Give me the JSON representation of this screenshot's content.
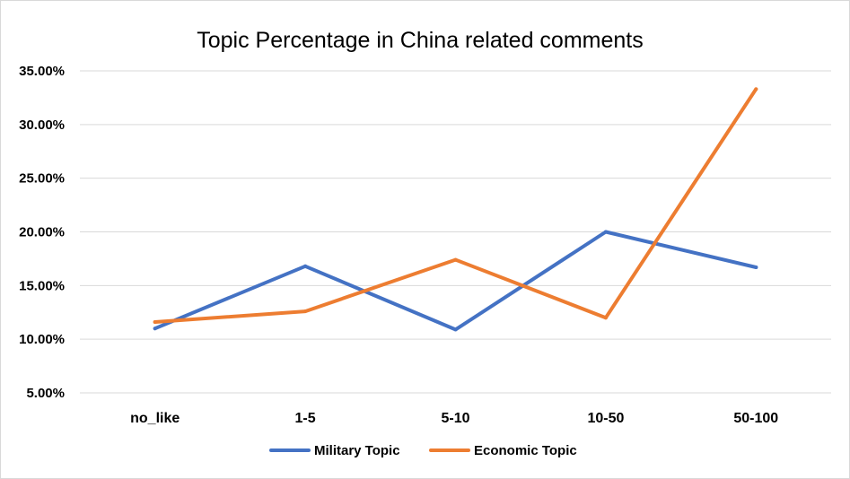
{
  "chart_data": {
    "type": "line",
    "title": "Topic Percentage in China related comments",
    "xlabel": "",
    "ylabel": "",
    "categories": [
      "no_like",
      "1-5",
      "5-10",
      "10-50",
      "50-100"
    ],
    "series": [
      {
        "name": "Military Topic",
        "color": "#4472c4",
        "values": [
          11.0,
          16.8,
          10.9,
          20.0,
          16.7
        ]
      },
      {
        "name": "Economic Topic",
        "color": "#ed7d31",
        "values": [
          11.6,
          12.6,
          17.4,
          12.0,
          33.3
        ]
      }
    ],
    "ylim": [
      5,
      35
    ],
    "yticks": [
      5,
      10,
      15,
      20,
      25,
      30,
      35
    ],
    "ytick_labels": [
      "5.00%",
      "10.00%",
      "15.00%",
      "20.00%",
      "25.00%",
      "30.00%",
      "35.00%"
    ],
    "grid": true,
    "legend_position": "bottom"
  }
}
